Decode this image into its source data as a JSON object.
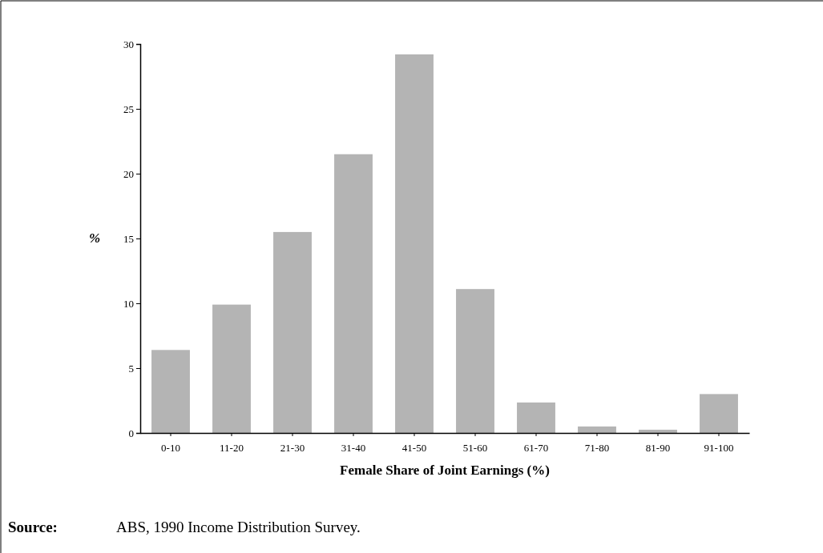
{
  "chart_data": {
    "type": "bar",
    "categories": [
      "0-10",
      "11-20",
      "21-30",
      "31-40",
      "41-50",
      "51-60",
      "61-70",
      "71-80",
      "81-90",
      "91-100"
    ],
    "values": [
      6.4,
      9.9,
      15.5,
      21.5,
      29.2,
      11.1,
      2.35,
      0.5,
      0.25,
      3.0
    ],
    "color": "#b4b4b4",
    "ylim": [
      0,
      30
    ],
    "yticks": [
      0,
      5,
      10,
      15,
      20,
      25,
      30
    ],
    "xlabel": "Female Share of Joint Earnings (%)",
    "ylabel": "%",
    "annotations": [
      "Source: ABS, 1990 Income Distribution Survey."
    ]
  }
}
